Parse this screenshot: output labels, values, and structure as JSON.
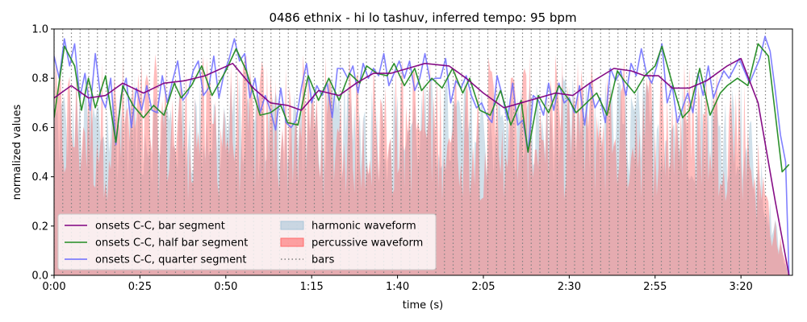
{
  "chart_data": {
    "type": "line",
    "title": "0486 ethnix - hi lo tashuv, inferred tempo: 95 bpm",
    "xlabel": "time (s)",
    "ylabel": "normalized values",
    "xlim": [
      0,
      215
    ],
    "ylim": [
      0,
      1.0
    ],
    "x_ticks": [
      {
        "value": 0,
        "label": "0:00"
      },
      {
        "value": 25,
        "label": "0:25"
      },
      {
        "value": 50,
        "label": "0:50"
      },
      {
        "value": 75,
        "label": "1:15"
      },
      {
        "value": 100,
        "label": "1:40"
      },
      {
        "value": 125,
        "label": "2:05"
      },
      {
        "value": 150,
        "label": "2:30"
      },
      {
        "value": 175,
        "label": "2:55"
      },
      {
        "value": 200,
        "label": "3:20"
      }
    ],
    "y_ticks": [
      {
        "value": 0.0,
        "label": "0.0"
      },
      {
        "value": 0.2,
        "label": "0.2"
      },
      {
        "value": 0.4,
        "label": "0.4"
      },
      {
        "value": 0.6,
        "label": "0.6"
      },
      {
        "value": 0.8,
        "label": "0.8"
      },
      {
        "value": 1.0,
        "label": "1.0"
      }
    ],
    "bar_period_s": 2.526,
    "bars_end_s": 208,
    "series": [
      {
        "name": "onsets C-C, bar segment",
        "color": "#800080",
        "points": [
          [
            0,
            0.72
          ],
          [
            5,
            0.77
          ],
          [
            10,
            0.72
          ],
          [
            15,
            0.73
          ],
          [
            20,
            0.78
          ],
          [
            26,
            0.74
          ],
          [
            32,
            0.78
          ],
          [
            38,
            0.79
          ],
          [
            44,
            0.81
          ],
          [
            52,
            0.86
          ],
          [
            58,
            0.76
          ],
          [
            63,
            0.7
          ],
          [
            68,
            0.69
          ],
          [
            72,
            0.67
          ],
          [
            77,
            0.75
          ],
          [
            83,
            0.73
          ],
          [
            88,
            0.78
          ],
          [
            93,
            0.82
          ],
          [
            98,
            0.82
          ],
          [
            103,
            0.84
          ],
          [
            108,
            0.86
          ],
          [
            115,
            0.85
          ],
          [
            120,
            0.8
          ],
          [
            125,
            0.74
          ],
          [
            131,
            0.68
          ],
          [
            136,
            0.7
          ],
          [
            141,
            0.72
          ],
          [
            146,
            0.74
          ],
          [
            151,
            0.73
          ],
          [
            156,
            0.78
          ],
          [
            163,
            0.84
          ],
          [
            168,
            0.83
          ],
          [
            172,
            0.81
          ],
          [
            176,
            0.81
          ],
          [
            180,
            0.76
          ],
          [
            185,
            0.76
          ],
          [
            190,
            0.79
          ],
          [
            196,
            0.85
          ],
          [
            200,
            0.88
          ],
          [
            205,
            0.7
          ],
          [
            210,
            0.3
          ],
          [
            214,
            0.0
          ]
        ]
      },
      {
        "name": "onsets C-C, half bar segment",
        "color": "#228b22",
        "points": [
          [
            0,
            0.64
          ],
          [
            3,
            0.93
          ],
          [
            6,
            0.85
          ],
          [
            8,
            0.67
          ],
          [
            10,
            0.8
          ],
          [
            12,
            0.68
          ],
          [
            15,
            0.81
          ],
          [
            18,
            0.54
          ],
          [
            20,
            0.77
          ],
          [
            23,
            0.69
          ],
          [
            26,
            0.64
          ],
          [
            29,
            0.69
          ],
          [
            32,
            0.65
          ],
          [
            35,
            0.78
          ],
          [
            37,
            0.72
          ],
          [
            40,
            0.77
          ],
          [
            43,
            0.85
          ],
          [
            46,
            0.73
          ],
          [
            50,
            0.83
          ],
          [
            53,
            0.92
          ],
          [
            56,
            0.83
          ],
          [
            60,
            0.65
          ],
          [
            63,
            0.66
          ],
          [
            66,
            0.69
          ],
          [
            68,
            0.62
          ],
          [
            71,
            0.61
          ],
          [
            74,
            0.81
          ],
          [
            77,
            0.71
          ],
          [
            80,
            0.8
          ],
          [
            83,
            0.71
          ],
          [
            86,
            0.82
          ],
          [
            89,
            0.78
          ],
          [
            91,
            0.85
          ],
          [
            94,
            0.82
          ],
          [
            97,
            0.81
          ],
          [
            99,
            0.86
          ],
          [
            102,
            0.77
          ],
          [
            105,
            0.84
          ],
          [
            107,
            0.75
          ],
          [
            110,
            0.8
          ],
          [
            113,
            0.76
          ],
          [
            116,
            0.84
          ],
          [
            119,
            0.74
          ],
          [
            121,
            0.8
          ],
          [
            124,
            0.67
          ],
          [
            127,
            0.65
          ],
          [
            130,
            0.75
          ],
          [
            133,
            0.61
          ],
          [
            136,
            0.71
          ],
          [
            138,
            0.5
          ],
          [
            141,
            0.73
          ],
          [
            144,
            0.66
          ],
          [
            147,
            0.77
          ],
          [
            150,
            0.71
          ],
          [
            152,
            0.66
          ],
          [
            155,
            0.7
          ],
          [
            158,
            0.74
          ],
          [
            161,
            0.65
          ],
          [
            164,
            0.83
          ],
          [
            166,
            0.79
          ],
          [
            169,
            0.74
          ],
          [
            172,
            0.81
          ],
          [
            175,
            0.85
          ],
          [
            177,
            0.93
          ],
          [
            180,
            0.78
          ],
          [
            183,
            0.64
          ],
          [
            185,
            0.67
          ],
          [
            188,
            0.84
          ],
          [
            191,
            0.65
          ],
          [
            194,
            0.74
          ],
          [
            196,
            0.77
          ],
          [
            199,
            0.8
          ],
          [
            202,
            0.77
          ],
          [
            205,
            0.94
          ],
          [
            208,
            0.89
          ],
          [
            212,
            0.42
          ],
          [
            214,
            0.45
          ]
        ]
      },
      {
        "name": "onsets C-C, quarter segment",
        "color": "#6b6bff",
        "points": [
          [
            0,
            0.89
          ],
          [
            1.5,
            0.8
          ],
          [
            3,
            0.96
          ],
          [
            4.5,
            0.85
          ],
          [
            6,
            0.94
          ],
          [
            7.5,
            0.72
          ],
          [
            9,
            0.82
          ],
          [
            10.5,
            0.67
          ],
          [
            12,
            0.9
          ],
          [
            13.5,
            0.73
          ],
          [
            15,
            0.68
          ],
          [
            16.5,
            0.8
          ],
          [
            18,
            0.53
          ],
          [
            19.5,
            0.73
          ],
          [
            21,
            0.8
          ],
          [
            22.5,
            0.6
          ],
          [
            24,
            0.76
          ],
          [
            25.5,
            0.67
          ],
          [
            27,
            0.77
          ],
          [
            28.5,
            0.67
          ],
          [
            30,
            0.66
          ],
          [
            31.5,
            0.81
          ],
          [
            33,
            0.7
          ],
          [
            34.5,
            0.79
          ],
          [
            36,
            0.87
          ],
          [
            37.5,
            0.71
          ],
          [
            39,
            0.74
          ],
          [
            40.5,
            0.83
          ],
          [
            42,
            0.87
          ],
          [
            43.5,
            0.73
          ],
          [
            45,
            0.76
          ],
          [
            46.5,
            0.89
          ],
          [
            48,
            0.72
          ],
          [
            49.5,
            0.82
          ],
          [
            51,
            0.88
          ],
          [
            52.5,
            0.96
          ],
          [
            54,
            0.87
          ],
          [
            55.5,
            0.9
          ],
          [
            57,
            0.72
          ],
          [
            58.5,
            0.8
          ],
          [
            60,
            0.66
          ],
          [
            61.5,
            0.73
          ],
          [
            63,
            0.67
          ],
          [
            64.5,
            0.59
          ],
          [
            66,
            0.76
          ],
          [
            67.5,
            0.62
          ],
          [
            69,
            0.6
          ],
          [
            70.5,
            0.63
          ],
          [
            72,
            0.76
          ],
          [
            73.5,
            0.86
          ],
          [
            75,
            0.7
          ],
          [
            76.5,
            0.77
          ],
          [
            78,
            0.73
          ],
          [
            79.5,
            0.78
          ],
          [
            81,
            0.64
          ],
          [
            82.5,
            0.84
          ],
          [
            84,
            0.84
          ],
          [
            85.5,
            0.8
          ],
          [
            87,
            0.85
          ],
          [
            88.5,
            0.74
          ],
          [
            90,
            0.86
          ],
          [
            91.5,
            0.8
          ],
          [
            93,
            0.84
          ],
          [
            94.5,
            0.81
          ],
          [
            96,
            0.9
          ],
          [
            97.5,
            0.77
          ],
          [
            99,
            0.82
          ],
          [
            100.5,
            0.87
          ],
          [
            102,
            0.8
          ],
          [
            103.5,
            0.87
          ],
          [
            105,
            0.75
          ],
          [
            106.5,
            0.8
          ],
          [
            108,
            0.9
          ],
          [
            109.5,
            0.79
          ],
          [
            111,
            0.8
          ],
          [
            112.5,
            0.8
          ],
          [
            114,
            0.88
          ],
          [
            115.5,
            0.7
          ],
          [
            117,
            0.79
          ],
          [
            118.5,
            0.76
          ],
          [
            120,
            0.81
          ],
          [
            121.5,
            0.73
          ],
          [
            123,
            0.68
          ],
          [
            124.5,
            0.7
          ],
          [
            126,
            0.65
          ],
          [
            127.5,
            0.62
          ],
          [
            129,
            0.81
          ],
          [
            130.5,
            0.73
          ],
          [
            132,
            0.63
          ],
          [
            133.5,
            0.78
          ],
          [
            135,
            0.61
          ],
          [
            136.5,
            0.63
          ],
          [
            138,
            0.5
          ],
          [
            139.5,
            0.73
          ],
          [
            141,
            0.71
          ],
          [
            142.5,
            0.65
          ],
          [
            144,
            0.78
          ],
          [
            145.5,
            0.67
          ],
          [
            147,
            0.78
          ],
          [
            148.5,
            0.7
          ],
          [
            150,
            0.72
          ],
          [
            151.5,
            0.66
          ],
          [
            153,
            0.77
          ],
          [
            154.5,
            0.61
          ],
          [
            156,
            0.78
          ],
          [
            157.5,
            0.68
          ],
          [
            159,
            0.72
          ],
          [
            160.5,
            0.62
          ],
          [
            162,
            0.84
          ],
          [
            163.5,
            0.79
          ],
          [
            165,
            0.83
          ],
          [
            166.5,
            0.73
          ],
          [
            168,
            0.86
          ],
          [
            169.5,
            0.81
          ],
          [
            171,
            0.92
          ],
          [
            172.5,
            0.82
          ],
          [
            174,
            0.78
          ],
          [
            175.5,
            0.85
          ],
          [
            177,
            0.94
          ],
          [
            178.5,
            0.7
          ],
          [
            180,
            0.77
          ],
          [
            181.5,
            0.62
          ],
          [
            183,
            0.68
          ],
          [
            184.5,
            0.74
          ],
          [
            186,
            0.66
          ],
          [
            187.5,
            0.82
          ],
          [
            189,
            0.73
          ],
          [
            190.5,
            0.85
          ],
          [
            192,
            0.72
          ],
          [
            193.5,
            0.78
          ],
          [
            195,
            0.83
          ],
          [
            196.5,
            0.8
          ],
          [
            198,
            0.84
          ],
          [
            199.5,
            0.88
          ],
          [
            201,
            0.83
          ],
          [
            202.5,
            0.78
          ],
          [
            204,
            0.83
          ],
          [
            205.5,
            0.88
          ],
          [
            207,
            0.97
          ],
          [
            208.5,
            0.91
          ],
          [
            210,
            0.75
          ],
          [
            211.5,
            0.57
          ],
          [
            213,
            0.46
          ],
          [
            214,
            0.0
          ]
        ]
      }
    ],
    "area_series": [
      {
        "name": "harmonic waveform",
        "color": "#a9c6d9",
        "opacity": 0.55
      },
      {
        "name": "percussive waveform",
        "color": "#ff6b6b",
        "opacity": 0.45
      }
    ],
    "bars_series": {
      "name": "bars",
      "color": "#808080"
    },
    "legend": {
      "placement": "lower-left"
    }
  }
}
